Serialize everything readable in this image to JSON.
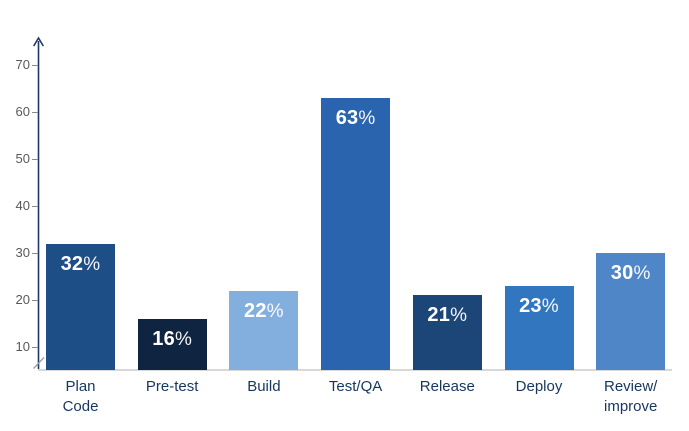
{
  "chart_data": {
    "type": "bar",
    "categories": [
      "Plan\nCode",
      "Pre-test",
      "Build",
      "Test/QA",
      "Release",
      "Deploy",
      "Review/\nimprove"
    ],
    "values": [
      32,
      16,
      22,
      63,
      21,
      23,
      30
    ],
    "value_labels": [
      "32%",
      "16%",
      "22%",
      "63%",
      "21%",
      "23%",
      "30%"
    ],
    "bar_colors": [
      "#1d4e85",
      "#0f2440",
      "#82afde",
      "#2a64af",
      "#1c4677",
      "#3376c0",
      "#4f86c8"
    ],
    "title": "",
    "xlabel": "",
    "ylabel": "",
    "y_ticks": [
      10,
      20,
      30,
      40,
      50,
      60,
      70
    ],
    "ylim": [
      5,
      74
    ],
    "grid": false,
    "legend": false,
    "axis_break_at_bottom": true,
    "colors": {
      "value_label": "#ffffff",
      "axis_line": "#1f3864",
      "tick_label": "#595959",
      "tick_dash": "#8a8a8a",
      "category_label": "#17365e",
      "baseline": "#d8d8d8"
    }
  }
}
